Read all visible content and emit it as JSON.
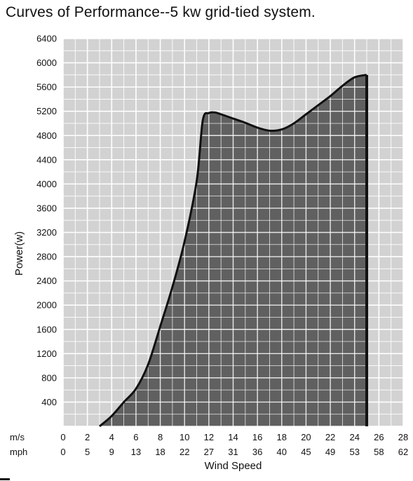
{
  "title": "Curves of Performance--5 kw grid-tied system.",
  "chart_data": {
    "type": "area",
    "title": "Curves of Performance--5 kw grid-tied system.",
    "xlabel": "Wind Speed",
    "ylabel": "Power(w)",
    "xlim": [
      0,
      28
    ],
    "ylim": [
      0,
      6400
    ],
    "grid": true,
    "x_unit_labels": {
      "primary": "m/s",
      "secondary": "mph"
    },
    "x_ticks": [
      0,
      2,
      4,
      6,
      8,
      10,
      12,
      14,
      16,
      18,
      20,
      22,
      24,
      26,
      28
    ],
    "x_ticks_mph": [
      "0",
      "5",
      "9",
      "13",
      "18",
      "22",
      "27",
      "31",
      "36",
      "40",
      "45",
      "49",
      "53",
      "58",
      "62"
    ],
    "y_ticks": [
      400,
      800,
      1200,
      1600,
      2000,
      2400,
      2800,
      3200,
      3600,
      4000,
      4400,
      4800,
      5200,
      5600,
      6000,
      6400
    ],
    "series": [
      {
        "x": [
          3,
          4,
          5,
          6,
          7,
          8,
          9,
          10,
          11,
          11.5,
          12,
          12.5,
          13,
          14,
          15,
          16,
          17,
          18,
          19,
          20,
          21,
          22,
          23,
          24,
          25
        ],
        "y": [
          0,
          170,
          400,
          620,
          1020,
          1650,
          2300,
          3050,
          4050,
          5050,
          5170,
          5180,
          5150,
          5080,
          5010,
          4930,
          4880,
          4900,
          5000,
          5150,
          5300,
          5450,
          5620,
          5760,
          5800
        ]
      }
    ],
    "cutout_speed": 25,
    "colors": {
      "fill": "#606060",
      "plot_background": "#d2d2d2",
      "grid": "#ffffff",
      "curve": "#111111"
    }
  }
}
